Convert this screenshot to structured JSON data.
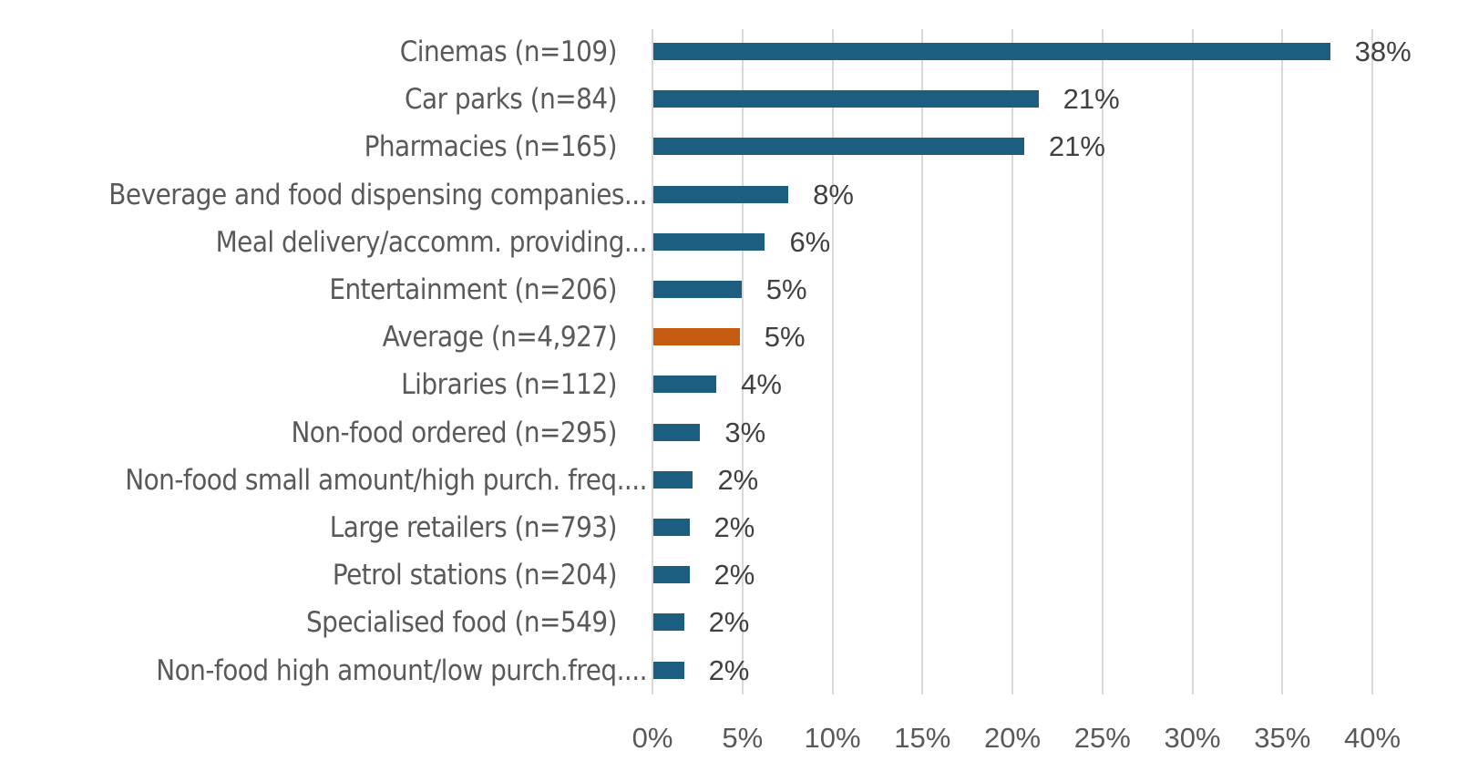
{
  "chart_data": {
    "type": "bar",
    "orientation": "horizontal",
    "title": "",
    "xlabel": "",
    "ylabel": "",
    "xlim": [
      0,
      40
    ],
    "grid": true,
    "legend": null,
    "x_ticks": [
      "0%",
      "5%",
      "10%",
      "15%",
      "20%",
      "25%",
      "30%",
      "35%",
      "40%"
    ],
    "categories": [
      "Cinemas (n=109)",
      "Car parks (n=84)",
      "Pharmacies (n=165)",
      "Beverage and food dispensing companies...",
      "Meal delivery/accomm. providing...",
      "Entertainment (n=206)",
      "Average (n=4,927)",
      "Libraries (n=112)",
      "Non-food ordered (n=295)",
      "Non-food small amount/high purch. freq....",
      "Large retailers (n=793)",
      "Petrol stations (n=204)",
      "Specialised food (n=549)",
      "Non-food high amount/low purch.freq...."
    ],
    "values": [
      37.6,
      21.4,
      20.6,
      7.5,
      6.2,
      4.9,
      4.8,
      3.5,
      2.6,
      2.2,
      2.0,
      2.0,
      1.7,
      1.7
    ],
    "data_labels": [
      "38%",
      "21%",
      "21%",
      "8%",
      "6%",
      "5%",
      "5%",
      "4%",
      "3%",
      "2%",
      "2%",
      "2%",
      "2%",
      "2%"
    ],
    "colors": [
      "#1b5e80",
      "#1b5e80",
      "#1b5e80",
      "#1b5e80",
      "#1b5e80",
      "#1b5e80",
      "#c55a11",
      "#1b5e80",
      "#1b5e80",
      "#1b5e80",
      "#1b5e80",
      "#1b5e80",
      "#1b5e80",
      "#1b5e80"
    ]
  },
  "colors": {
    "bar": "#1b5e80",
    "highlight": "#c55a11",
    "grid": "#d9d9d9",
    "label_text": "#595959",
    "value_text": "#404040"
  }
}
